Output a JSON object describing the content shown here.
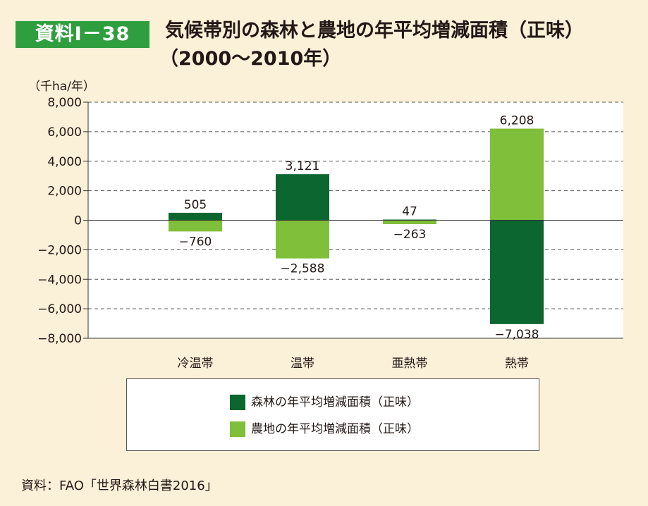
{
  "badge": "資料Ⅰ－38",
  "title_line1": "気候帯別の森林と農地の年平均増減面積（正味）",
  "title_line2": "（2000～2010年）",
  "unit_label": "（千ha/年）",
  "source": "資料：FAO「世界森林白書2016」",
  "colors": {
    "forest": "#0c6630",
    "farmland": "#7fbf3a",
    "plot_bg": "#ffffff",
    "page_bg": "#fbf0d8",
    "badge": "#2f9e3f"
  },
  "chart_data": {
    "type": "bar",
    "title": "気候帯別の森林と農地の年平均増減面積（正味）（2000～2010年）",
    "ylabel": "（千ha/年）",
    "ylim": [
      -8000,
      8000
    ],
    "yticks": [
      8000,
      6000,
      4000,
      2000,
      0,
      -2000,
      -4000,
      -6000,
      -8000
    ],
    "ytick_labels": [
      "8,000",
      "6,000",
      "4,000",
      "2,000",
      "0",
      "−2,000",
      "−4,000",
      "−6,000",
      "−8,000"
    ],
    "categories": [
      "冷温帯",
      "温帯",
      "亜熱帯",
      "熱帯"
    ],
    "grid": true,
    "legend_position": "bottom",
    "series": [
      {
        "name": "森林の年平均増減面積（正味）",
        "values": [
          505,
          3121,
          47,
          -7038
        ],
        "labels": [
          "505",
          "3,121",
          "47",
          "−7,038"
        ]
      },
      {
        "name": "農地の年平均増減面積（正味）",
        "values": [
          -760,
          -2588,
          -263,
          6208
        ],
        "labels": [
          "−760",
          "−2,588",
          "−263",
          "6,208"
        ]
      }
    ]
  }
}
